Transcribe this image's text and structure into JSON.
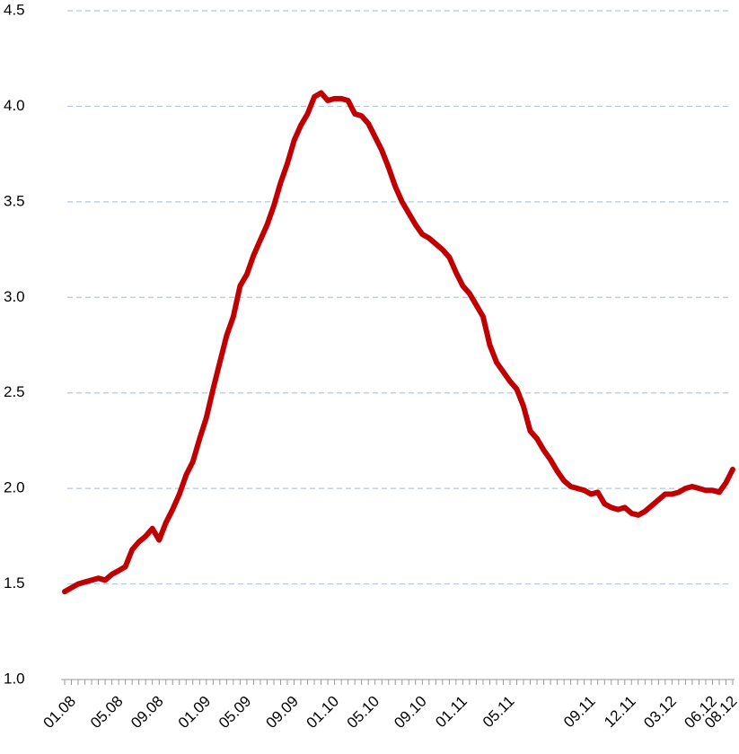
{
  "chart_data": {
    "type": "line",
    "categories": [
      "01.08",
      null,
      null,
      null,
      null,
      null,
      null,
      "05.08",
      null,
      null,
      null,
      null,
      null,
      "09.08",
      null,
      null,
      null,
      null,
      null,
      null,
      "01.09",
      null,
      null,
      null,
      null,
      null,
      "05.09",
      null,
      null,
      null,
      null,
      null,
      null,
      "09.09",
      null,
      null,
      null,
      null,
      null,
      "01.10",
      null,
      null,
      null,
      null,
      null,
      "05.10",
      null,
      null,
      null,
      null,
      null,
      null,
      "09.10",
      null,
      null,
      null,
      null,
      null,
      "01.11",
      null,
      null,
      null,
      null,
      null,
      null,
      "05.11",
      null,
      null,
      null,
      null,
      null,
      null,
      null,
      null,
      null,
      null,
      null,
      "09.11",
      null,
      null,
      null,
      null,
      null,
      "12.11",
      null,
      null,
      null,
      null,
      null,
      "03.12",
      null,
      null,
      null,
      null,
      null,
      "06.12",
      null,
      null,
      "08.12",
      null
    ],
    "values": [
      1.46,
      1.48,
      1.5,
      1.51,
      1.52,
      1.53,
      1.52,
      1.55,
      1.57,
      1.59,
      1.68,
      1.72,
      1.75,
      1.79,
      1.73,
      1.82,
      1.89,
      1.97,
      2.07,
      2.14,
      2.26,
      2.37,
      2.52,
      2.66,
      2.8,
      2.9,
      3.06,
      3.12,
      3.22,
      3.3,
      3.38,
      3.48,
      3.6,
      3.7,
      3.82,
      3.9,
      3.96,
      4.05,
      4.07,
      4.03,
      4.04,
      4.04,
      4.03,
      3.96,
      3.95,
      3.91,
      3.84,
      3.77,
      3.68,
      3.58,
      3.5,
      3.44,
      3.38,
      3.33,
      3.31,
      3.28,
      3.25,
      3.21,
      3.13,
      3.06,
      3.02,
      2.96,
      2.9,
      2.75,
      2.66,
      2.61,
      2.56,
      2.52,
      2.43,
      2.3,
      2.26,
      2.2,
      2.15,
      2.09,
      2.04,
      2.01,
      2.0,
      1.99,
      1.97,
      1.98,
      1.92,
      1.9,
      1.89,
      1.9,
      1.87,
      1.86,
      1.88,
      1.91,
      1.94,
      1.97,
      1.97,
      1.98,
      2.0,
      2.01,
      2.0,
      1.99,
      1.99,
      1.98,
      2.03,
      2.1
    ],
    "color": "#c00000",
    "ylim": [
      1,
      4.5
    ],
    "yticks": [
      {
        "value": 1,
        "label": "1.0"
      },
      1.5,
      {
        "value": 2,
        "label": "2.0"
      },
      2.5,
      {
        "value": 3,
        "label": "3.0"
      },
      3.5,
      {
        "value": 4,
        "label": "4.0"
      },
      4.5
    ],
    "grid": true
  }
}
